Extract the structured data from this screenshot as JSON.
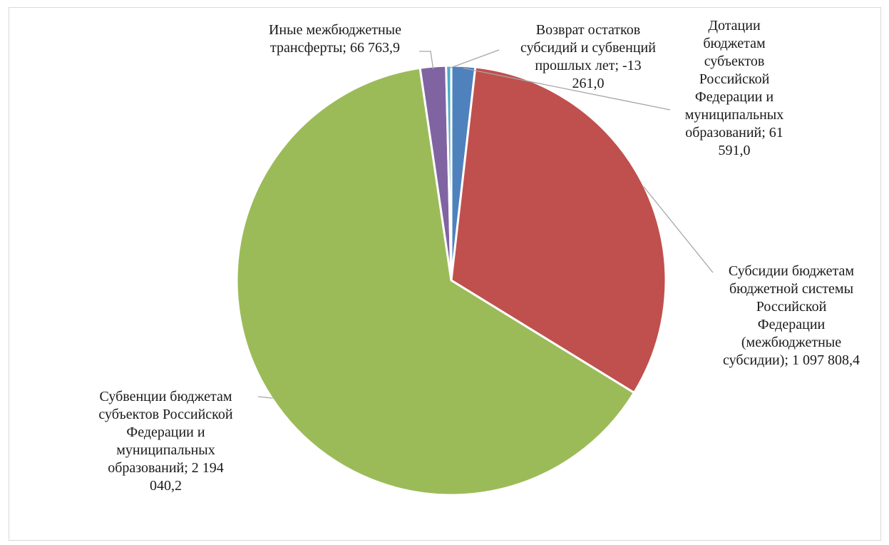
{
  "chart_data": {
    "type": "pie",
    "slices": [
      {
        "label": "Дотации бюджетам субъектов Российской Федерации и муниципальных образований",
        "value": 61591.0,
        "display": "Дотации\nбюджетам\nсубъектов\nРоссийской\nФедерации и\nмуниципальных\nобразований; 61\n591,0",
        "color": "#4f81bd"
      },
      {
        "label": "Субсидии бюджетам бюджетной системы Российской Федерации (межбюджетные субсидии)",
        "value": 1097808.4,
        "display": "Субсидии бюджетам\nбюджетной системы\nРоссийской\nФедерации\n(межбюджетные\nсубсидии); 1 097 808,4",
        "color": "#c0504d"
      },
      {
        "label": "Субвенции бюджетам субъектов Российской Федерации и муниципальных образований",
        "value": 2194040.2,
        "display": "Субвенции бюджетам\nсубъектов Российской\nФедерации и\nмуниципальных\nобразований; 2 194\n040,2",
        "color": "#9bbb59"
      },
      {
        "label": "Иные межбюджетные трансферты",
        "value": 66763.9,
        "display": "Иные межбюджетные\nтрансферты; 66 763,9",
        "color": "#8064a2"
      },
      {
        "label": "Возврат остатков субсидий и субвенций прошлых лет",
        "value": -13261.0,
        "display": "Возврат остатков\nсубсидий и субвенций\nпрошлых лет; -13\n261,0",
        "color": "#4bacc6"
      }
    ]
  }
}
